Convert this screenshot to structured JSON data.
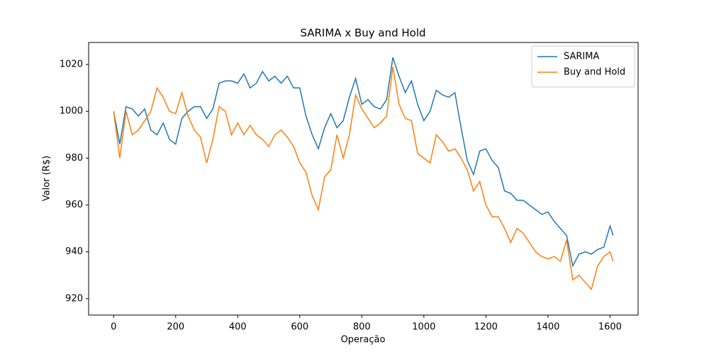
{
  "chart_data": {
    "type": "line",
    "title": "SARIMA x Buy and Hold",
    "x_label": "Operação",
    "y_label": "Valor (R$)",
    "x": [
      0,
      20,
      40,
      60,
      80,
      100,
      120,
      140,
      160,
      180,
      200,
      220,
      240,
      260,
      280,
      300,
      320,
      340,
      360,
      380,
      400,
      420,
      440,
      460,
      480,
      500,
      520,
      540,
      560,
      580,
      600,
      620,
      640,
      660,
      680,
      700,
      720,
      740,
      760,
      780,
      800,
      820,
      840,
      860,
      880,
      900,
      920,
      940,
      960,
      980,
      1000,
      1020,
      1040,
      1060,
      1080,
      1100,
      1120,
      1140,
      1160,
      1180,
      1200,
      1220,
      1240,
      1260,
      1280,
      1300,
      1320,
      1340,
      1360,
      1380,
      1400,
      1420,
      1440,
      1460,
      1480,
      1500,
      1520,
      1540,
      1560,
      1580,
      1600,
      1610
    ],
    "series": [
      {
        "name": "SARIMA",
        "color": "#1f77b4",
        "values": [
          1000,
          986,
          1002,
          1001,
          998,
          1001,
          992,
          990,
          995,
          988,
          986,
          997,
          1000,
          1002,
          1002,
          997,
          1001,
          1012,
          1013,
          1013,
          1012,
          1016,
          1010,
          1012,
          1017,
          1013,
          1015,
          1012,
          1015,
          1010,
          1010,
          998,
          990,
          984,
          993,
          999,
          993,
          996,
          1006,
          1014,
          1003,
          1005,
          1002,
          1001,
          1005,
          1023,
          1015,
          1008,
          1013,
          1003,
          996,
          1000,
          1009,
          1007,
          1006,
          1008,
          993,
          979,
          973,
          983,
          984,
          979,
          976,
          966,
          965,
          962,
          962,
          960,
          958,
          956,
          957,
          953,
          950,
          947,
          934,
          939,
          940,
          939,
          941,
          942,
          951,
          947
        ]
      },
      {
        "name": "Buy and Hold",
        "color": "#ff7f0e",
        "values": [
          1000,
          980,
          1000,
          990,
          992,
          996,
          1000,
          1010,
          1006,
          1000,
          999,
          1008,
          998,
          992,
          989,
          978,
          988,
          1002,
          1000,
          990,
          995,
          990,
          994,
          990,
          988,
          985,
          990,
          992,
          989,
          985,
          978,
          974,
          964,
          958,
          972,
          975,
          990,
          980,
          990,
          1007,
          1001,
          997,
          993,
          995,
          998,
          1019,
          1003,
          997,
          996,
          982,
          980,
          978,
          990,
          987,
          983,
          984,
          980,
          975,
          966,
          970,
          960,
          955,
          955,
          950,
          944,
          950,
          948,
          944,
          940,
          938,
          937,
          938,
          936,
          945,
          928,
          930,
          927,
          924,
          934,
          938,
          940,
          936
        ]
      }
    ],
    "xlim": [
      -80.5,
      1690.5
    ],
    "ylim": [
      913,
      1029.4
    ],
    "xticks": [
      0,
      200,
      400,
      600,
      800,
      1000,
      1200,
      1400,
      1600
    ],
    "yticks": [
      920,
      940,
      960,
      980,
      1000,
      1020
    ],
    "legend": "upper right",
    "grid": false
  }
}
